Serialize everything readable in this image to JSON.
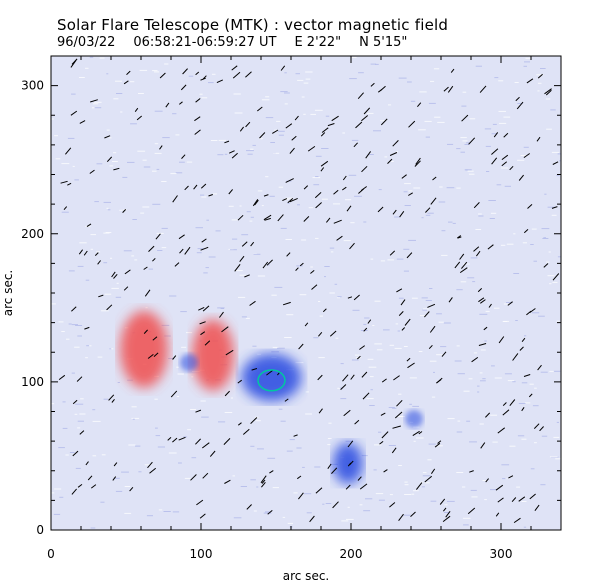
{
  "header": {
    "title": "Solar Flare Telescope (MTK) : vector magnetic field",
    "date": "96/03/22",
    "time_range": "06:58:21-06:59:27 UT",
    "longitude": "E 2'22\"",
    "latitude": "N 5'15\""
  },
  "chart_data": {
    "type": "heatmap",
    "title": "Solar Flare Telescope (MTK) : vector magnetic field",
    "xlabel": "arc sec.",
    "ylabel": "arc sec.",
    "xlim": [
      0,
      340
    ],
    "ylim": [
      0,
      320
    ],
    "x_ticks": [
      0,
      100,
      200,
      300
    ],
    "y_ticks": [
      0,
      100,
      200,
      300
    ],
    "colors": {
      "positive": "#f05050",
      "negative": "#2848e0",
      "background": "#dfe3f6",
      "contour": "#00c8a0",
      "vectors": "#000000"
    },
    "regions": [
      {
        "polarity": "positive",
        "cx": 62,
        "cy": 122,
        "rx": 16,
        "ry": 26
      },
      {
        "polarity": "positive",
        "cx": 108,
        "cy": 118,
        "rx": 14,
        "ry": 24
      },
      {
        "polarity": "negative",
        "cx": 147,
        "cy": 103,
        "rx": 20,
        "ry": 16
      },
      {
        "polarity": "negative",
        "cx": 92,
        "cy": 113,
        "rx": 6,
        "ry": 6
      },
      {
        "polarity": "negative",
        "cx": 198,
        "cy": 45,
        "rx": 10,
        "ry": 14
      },
      {
        "polarity": "negative",
        "cx": 242,
        "cy": 75,
        "rx": 6,
        "ry": 6
      }
    ],
    "contour": {
      "cx": 147,
      "cy": 101,
      "rx": 9,
      "ry": 7
    }
  }
}
